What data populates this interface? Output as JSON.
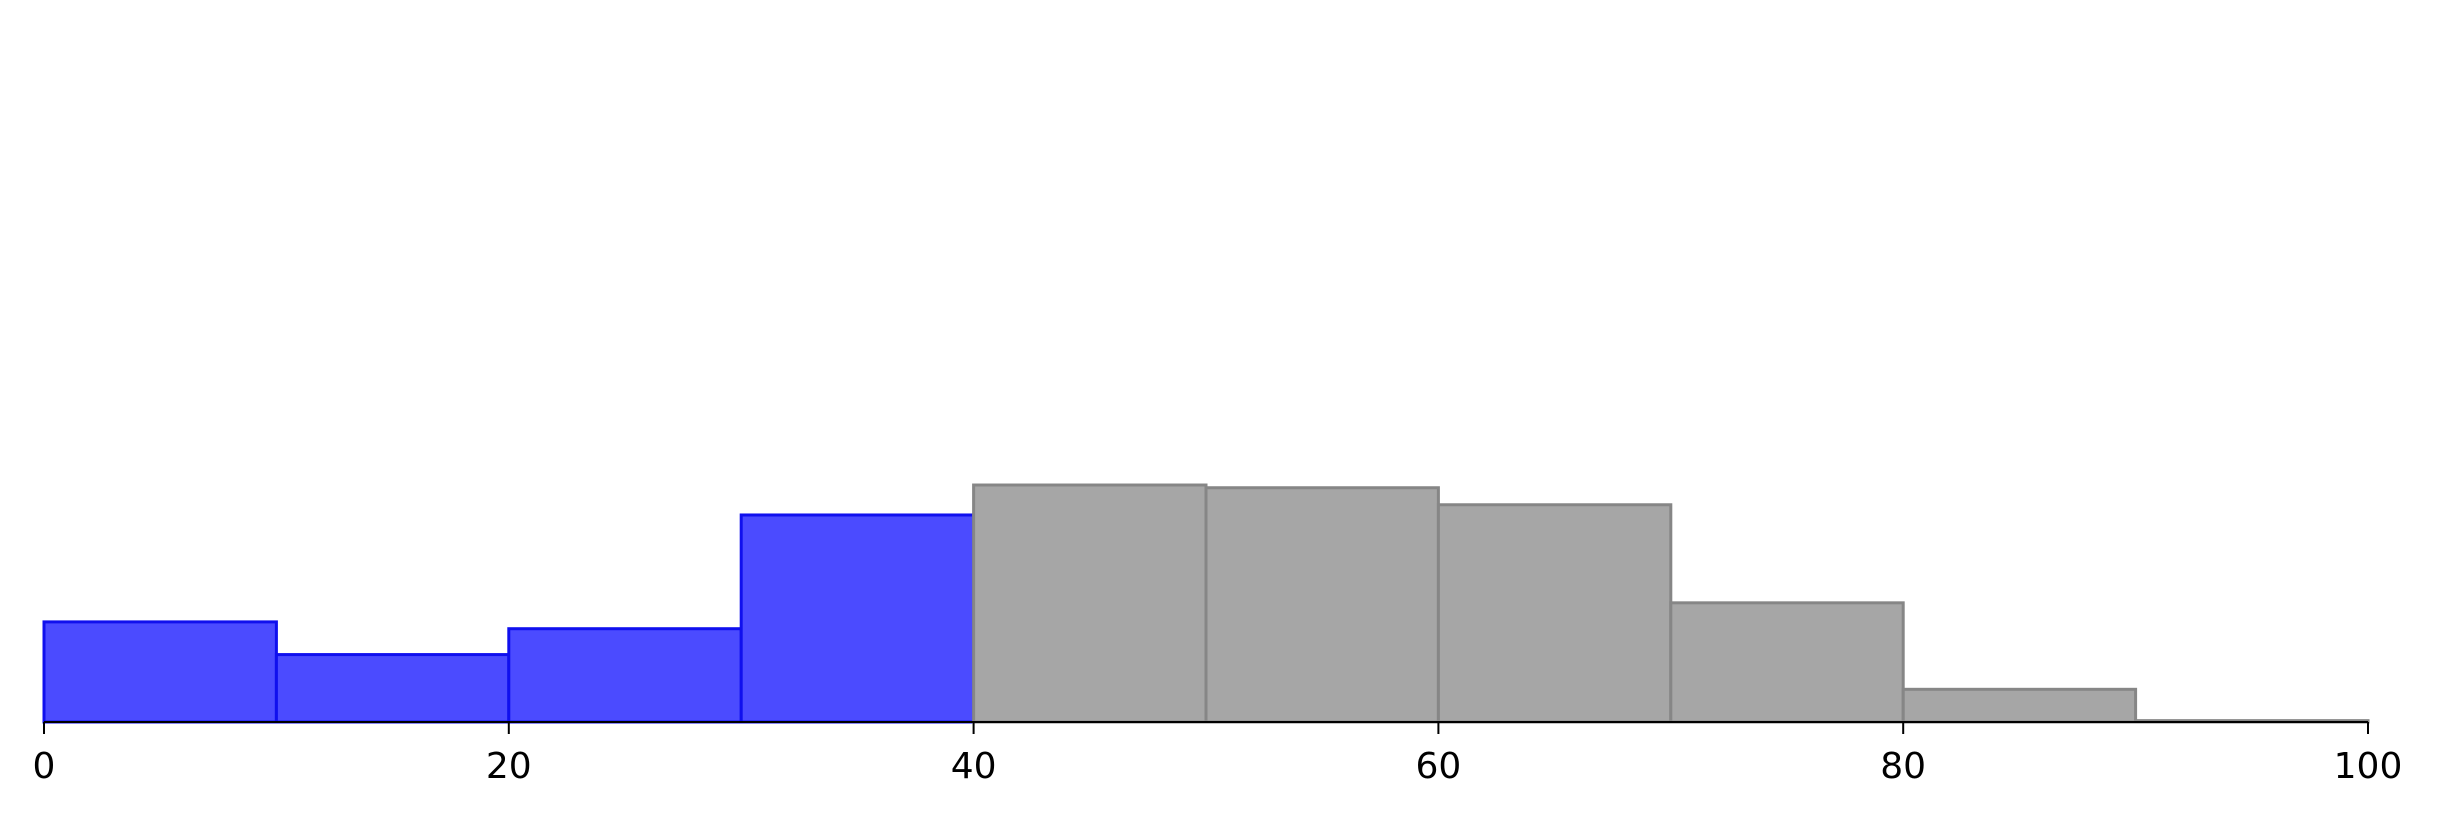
{
  "chart_data": {
    "type": "bar",
    "title": "",
    "xlabel": "",
    "ylabel": "",
    "bin_width": 10,
    "xlim": [
      0,
      100
    ],
    "ylim": [
      0,
      10
    ],
    "grid": false,
    "x_ticks": [
      0,
      20,
      40,
      60,
      80,
      100
    ],
    "x_tick_labels": [
      "0",
      "20",
      "40",
      "60",
      "80",
      "100"
    ],
    "series": [
      {
        "bins": [
          0,
          10,
          20,
          30
        ],
        "values": [
          1.47,
          0.99,
          1.37,
          3.04
        ],
        "color": "#4b4bff",
        "edge_color": "#1010ee"
      },
      {
        "bins": [
          40,
          50,
          60,
          70,
          80,
          90
        ],
        "values": [
          3.48,
          3.44,
          3.19,
          1.75,
          0.48,
          0.02
        ],
        "color": "#a6a6a6",
        "edge_color": "#868686"
      }
    ]
  }
}
